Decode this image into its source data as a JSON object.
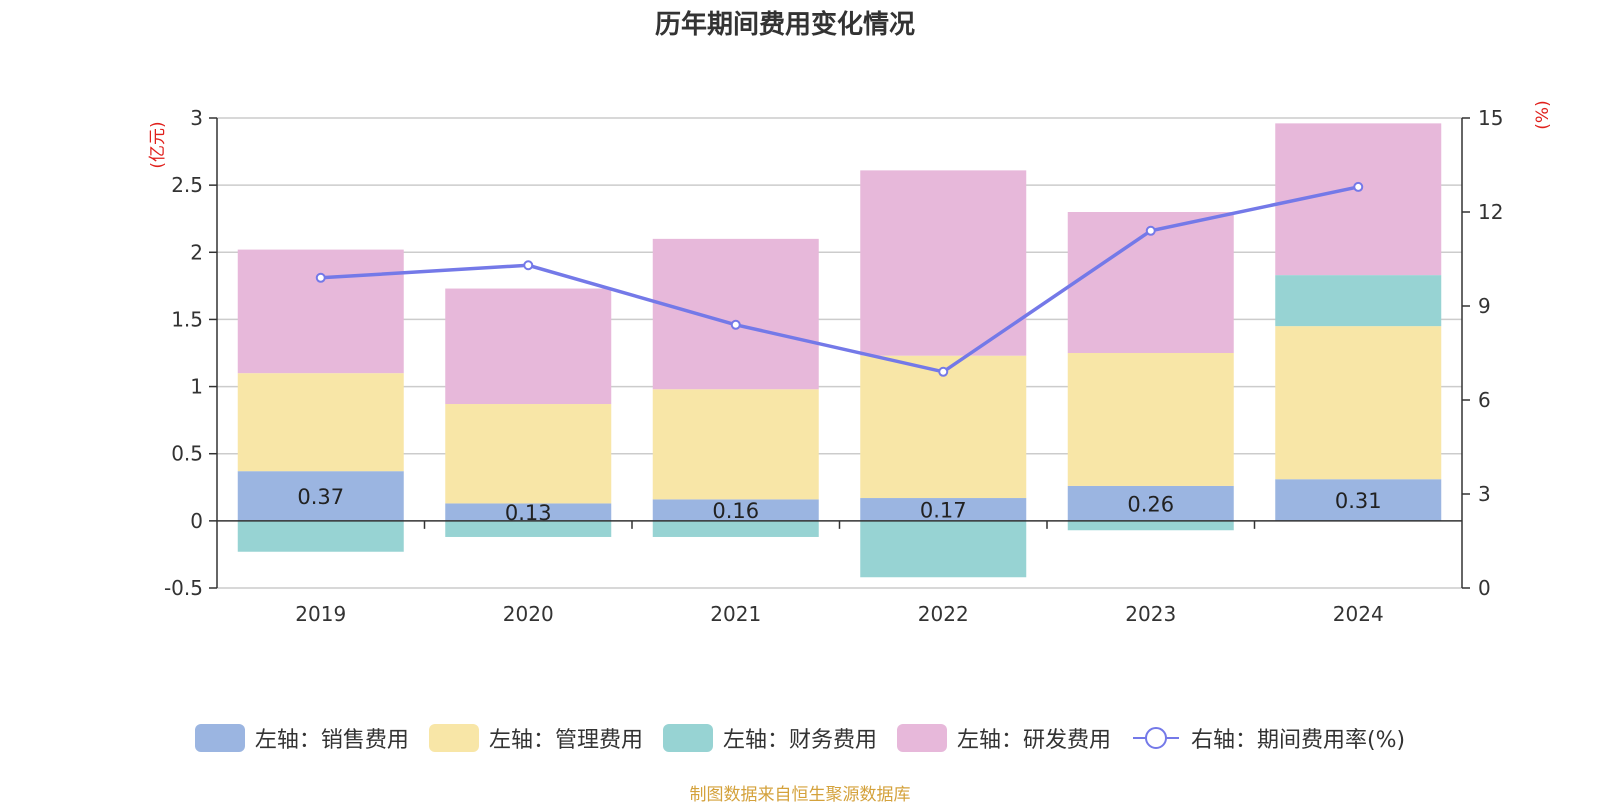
{
  "chart_data": {
    "type": "bar",
    "title": "历年期间费用变化情况",
    "categories": [
      "2019",
      "2020",
      "2021",
      "2022",
      "2023",
      "2024"
    ],
    "left_axis": {
      "unit": "(亿元)",
      "ylim": [
        -0.5,
        3
      ],
      "ticks": [
        "3",
        "2.5",
        "2",
        "1.5",
        "1",
        "0.5",
        "0",
        "-0.5"
      ],
      "tick_values": [
        3,
        2.5,
        2,
        1.5,
        1,
        0.5,
        0,
        -0.5
      ]
    },
    "right_axis": {
      "unit": "(%)",
      "ylim": [
        0,
        15
      ],
      "ticks": [
        "15",
        "12",
        "9",
        "6",
        "3",
        "0"
      ],
      "tick_values": [
        15,
        12,
        9,
        6,
        3,
        0
      ]
    },
    "series": [
      {
        "name": "左轴：销售费用",
        "axis": "left",
        "stack": "cost",
        "color": "#9bb5e1",
        "values": [
          0.37,
          0.13,
          0.16,
          0.17,
          0.26,
          0.31
        ],
        "labels": [
          "0.37",
          "0.13",
          "0.16",
          "0.17",
          "0.26",
          "0.31"
        ]
      },
      {
        "name": "左轴：管理费用",
        "axis": "left",
        "stack": "cost",
        "color": "#f8e6a7",
        "values": [
          0.73,
          0.74,
          0.82,
          1.06,
          0.99,
          1.14
        ]
      },
      {
        "name": "左轴：财务费用",
        "axis": "left",
        "stack": "cost",
        "color": "#97d3d3",
        "values": [
          -0.23,
          -0.12,
          -0.12,
          -0.42,
          -0.07,
          0.38
        ]
      },
      {
        "name": "左轴：研发费用",
        "axis": "left",
        "stack": "cost",
        "color": "#e7b8da",
        "values": [
          0.92,
          0.86,
          1.12,
          1.38,
          1.05,
          1.13
        ]
      },
      {
        "name": "右轴：期间费用率(%)",
        "axis": "right",
        "type": "line",
        "color": "#7479e8",
        "values": [
          9.9,
          10.3,
          8.4,
          6.9,
          11.4,
          12.8
        ]
      }
    ]
  },
  "source": "制图数据来自恒生聚源数据库"
}
